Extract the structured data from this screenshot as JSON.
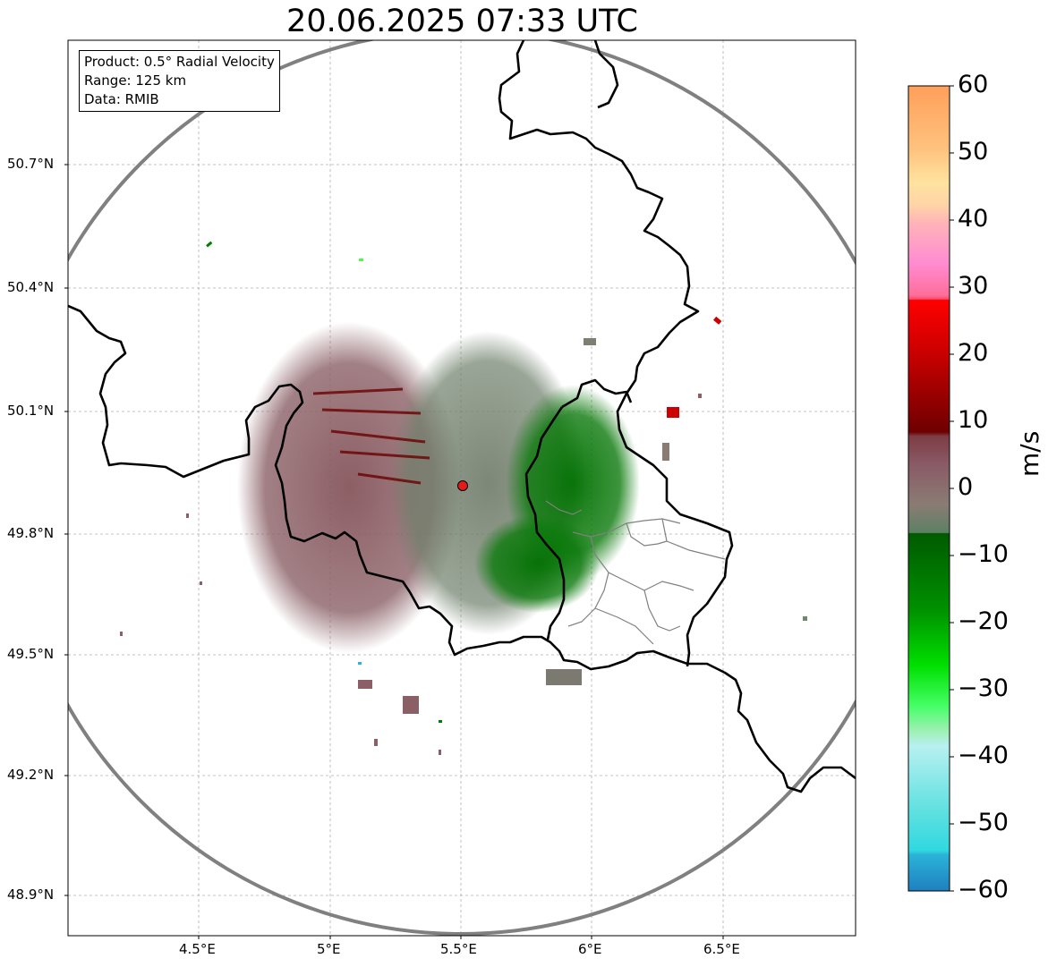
{
  "title": "20.06.2025 07:33 UTC",
  "info": {
    "product": "Product: 0.5° Radial Velocity",
    "range": "Range: 125 km",
    "data": "Data: RMIB"
  },
  "lat_ticks": [
    "50.7°N",
    "50.4°N",
    "50.1°N",
    "49.8°N",
    "49.5°N",
    "49.2°N",
    "48.9°N"
  ],
  "lon_ticks": [
    "4.5°E",
    "5°E",
    "5.5°E",
    "6°E",
    "6.5°E"
  ],
  "colorbar": {
    "label": "m/s",
    "ticks": [
      "60",
      "50",
      "40",
      "30",
      "20",
      "10",
      "0",
      "−10",
      "−20",
      "−30",
      "−40",
      "−50",
      "−60"
    ],
    "range": [
      -60,
      60
    ]
  },
  "radar_site": {
    "lon": 5.5,
    "lat": 49.914
  },
  "colors": {
    "range_ring": "#808080",
    "border": "#000000",
    "radar_marker": "#e41a1c",
    "inbound_dark": "#006400",
    "outbound_dark": "#7a0000",
    "near_zero": "#8a6e72"
  }
}
